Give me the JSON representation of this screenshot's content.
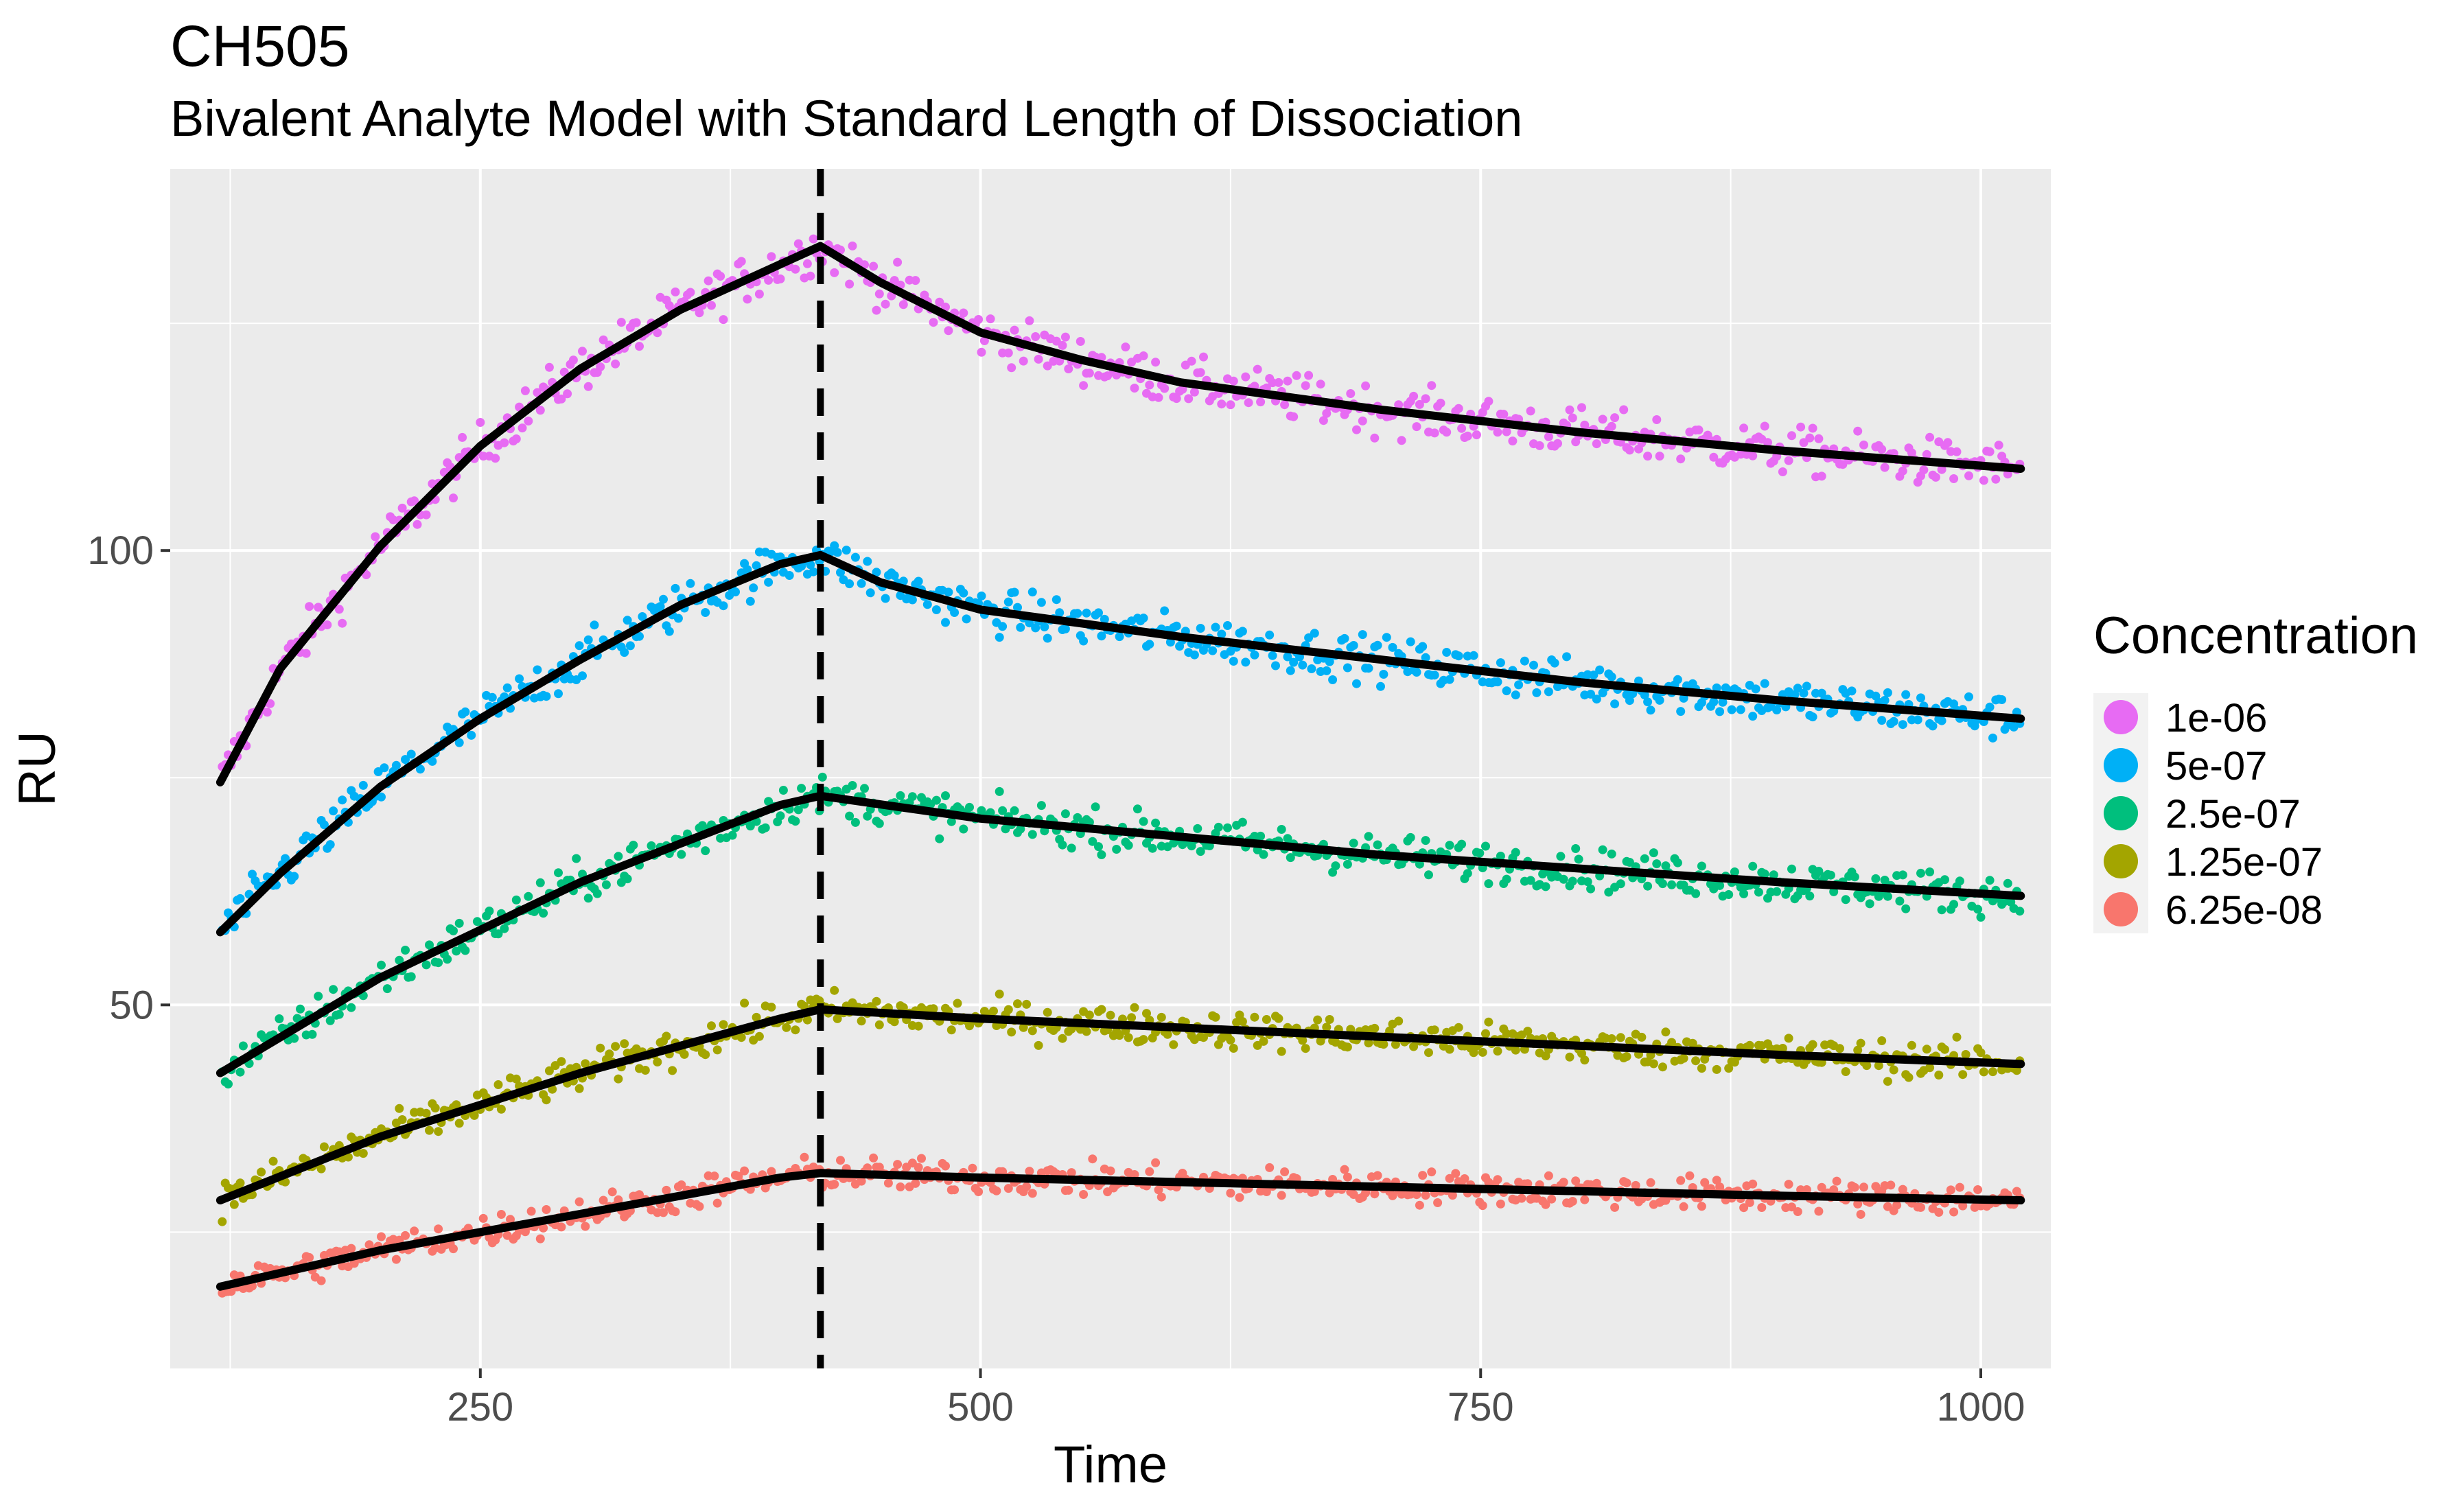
{
  "chart_data": {
    "type": "scatter",
    "title": "CH505",
    "subtitle": "Bivalent Analyte Model with Standard Length of Dissociation",
    "xlabel": "Time",
    "ylabel": "RU",
    "xlim": [
      95,
      1035
    ],
    "ylim": [
      10,
      142
    ],
    "x_ticks": [
      250,
      500,
      750,
      1000
    ],
    "y_ticks": [
      50,
      100
    ],
    "x_tick_labels": [
      "250",
      "500",
      "750",
      "1000"
    ],
    "y_tick_labels": [
      "50",
      "100"
    ],
    "grid": true,
    "legend_title": "Concentration",
    "legend_position": "right",
    "vline": {
      "x": 420,
      "style": "dashed",
      "color": "#000000"
    },
    "series": [
      {
        "name": "1e-06",
        "color": "#E76BF3",
        "fit": [
          [
            120,
            74.5
          ],
          [
            150,
            87
          ],
          [
            200,
            100.5
          ],
          [
            250,
            111.5
          ],
          [
            300,
            120
          ],
          [
            350,
            126.5
          ],
          [
            400,
            131.5
          ],
          [
            420,
            133.5
          ],
          [
            450,
            129.5
          ],
          [
            500,
            124
          ],
          [
            550,
            121
          ],
          [
            600,
            118.5
          ],
          [
            700,
            115.5
          ],
          [
            800,
            113
          ],
          [
            900,
            111
          ],
          [
            1020,
            109
          ]
        ],
        "noise": 1.3
      },
      {
        "name": "5e-07",
        "color": "#00B0F6",
        "fit": [
          [
            120,
            58
          ],
          [
            150,
            64.5
          ],
          [
            200,
            74
          ],
          [
            250,
            81.5
          ],
          [
            300,
            88
          ],
          [
            350,
            94
          ],
          [
            400,
            98.5
          ],
          [
            420,
            99.5
          ],
          [
            450,
            96.5
          ],
          [
            500,
            93.5
          ],
          [
            600,
            90.5
          ],
          [
            700,
            88
          ],
          [
            800,
            85.5
          ],
          [
            900,
            83.5
          ],
          [
            1020,
            81.5
          ]
        ],
        "noise": 1.2
      },
      {
        "name": "2.5e-07",
        "color": "#00BF7D",
        "fit": [
          [
            120,
            42.5
          ],
          [
            200,
            53
          ],
          [
            300,
            63.5
          ],
          [
            400,
            72
          ],
          [
            420,
            73
          ],
          [
            500,
            70.5
          ],
          [
            600,
            68.5
          ],
          [
            700,
            66.5
          ],
          [
            800,
            65
          ],
          [
            900,
            63.5
          ],
          [
            1020,
            62
          ]
        ],
        "noise": 1.1
      },
      {
        "name": "1.25e-07",
        "color": "#A3A500",
        "fit": [
          [
            120,
            28.5
          ],
          [
            200,
            35.5
          ],
          [
            300,
            42.5
          ],
          [
            400,
            48.5
          ],
          [
            420,
            49.5
          ],
          [
            500,
            48.5
          ],
          [
            600,
            47.5
          ],
          [
            700,
            46.5
          ],
          [
            800,
            45.5
          ],
          [
            900,
            44.5
          ],
          [
            1020,
            43.5
          ]
        ],
        "noise": 1.0
      },
      {
        "name": "6.25e-08",
        "color": "#F8766D",
        "fit": [
          [
            120,
            19
          ],
          [
            200,
            23
          ],
          [
            300,
            27
          ],
          [
            400,
            31
          ],
          [
            420,
            31.5
          ],
          [
            500,
            31
          ],
          [
            600,
            30.5
          ],
          [
            700,
            30
          ],
          [
            800,
            29.5
          ],
          [
            900,
            29
          ],
          [
            1020,
            28.5
          ]
        ],
        "noise": 0.9
      }
    ]
  }
}
